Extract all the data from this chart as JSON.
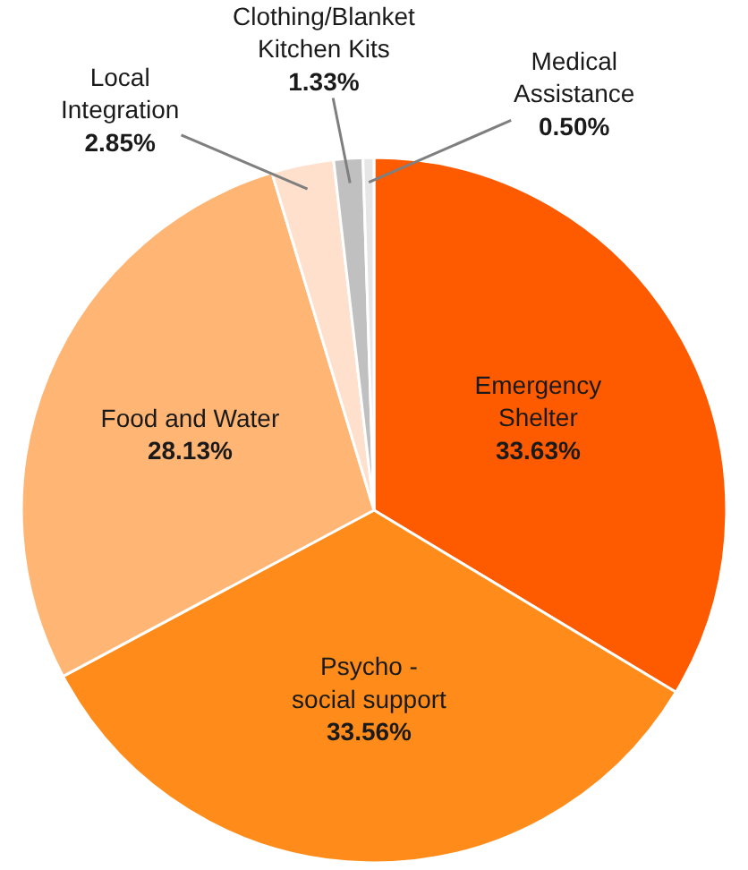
{
  "chart_data": {
    "type": "pie",
    "categories": [
      "Emergency Shelter",
      "Psycho - social support",
      "Food and Water",
      "Local Integration",
      "Clothing/Blanket Kitchen Kits",
      "Medical Assistance"
    ],
    "values": [
      33.63,
      33.56,
      28.13,
      2.85,
      1.33,
      0.5
    ],
    "value_labels": [
      "33.63%",
      "33.56%",
      "28.13%",
      "2.85%",
      "1.33%",
      "0.50%"
    ],
    "colors": [
      "#fe5a00",
      "#ff8c1a",
      "#ffb574",
      "#ffe0cc",
      "#c0c0c0",
      "#e6e6e6"
    ],
    "legend": false
  }
}
